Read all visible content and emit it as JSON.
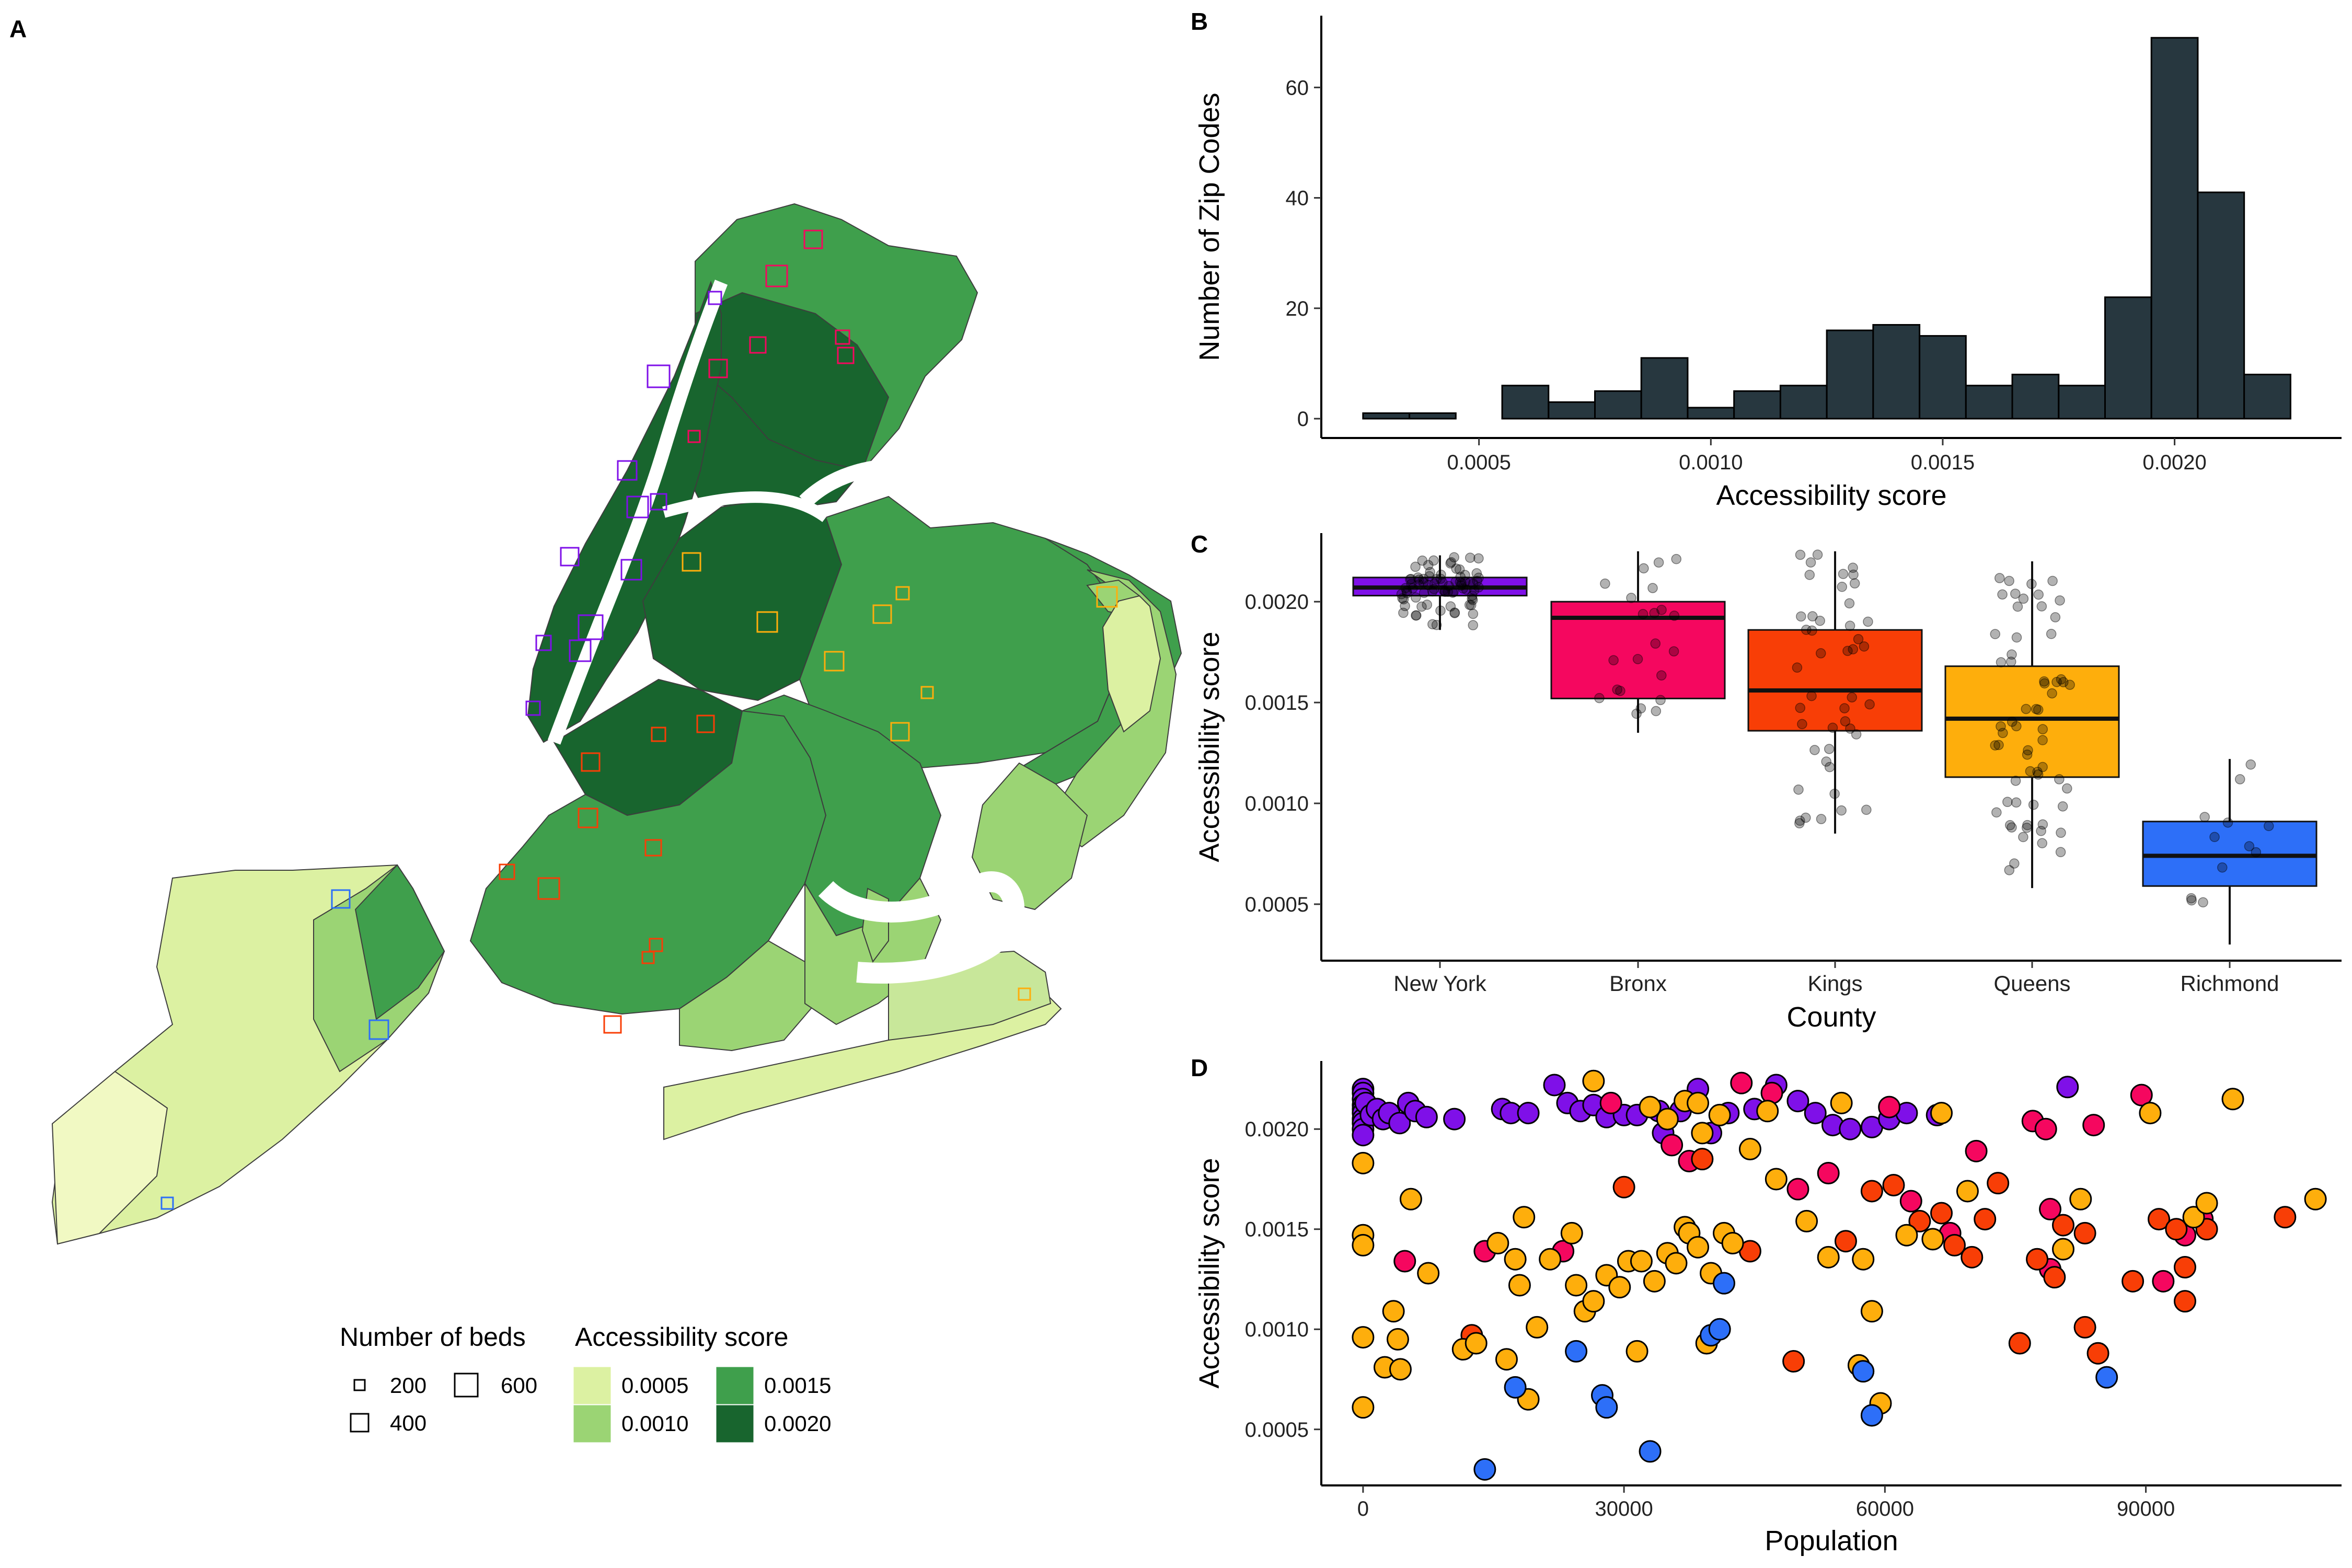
{
  "panel_labels": {
    "a": "A",
    "b": "B",
    "c": "C",
    "d": "D"
  },
  "colors": {
    "New York": "#7f10e8",
    "Bronx": "#f5075f",
    "Kings": "#f83e06",
    "Queens": "#feae0c",
    "Richmond": "#2d6ff8",
    "histogram_fill": "#27373f",
    "green_1": "#dcf1a2",
    "green_2": "#9bd474",
    "green_3": "#3f9f4c",
    "green_4": "#18652e"
  },
  "map_legend": {
    "beds_title": "Number of beds",
    "beds_entries": [
      {
        "label": "200",
        "value": 200
      },
      {
        "label": "400",
        "value": 400
      },
      {
        "label": "600",
        "value": 600
      }
    ],
    "score_title": "Accessibility score",
    "score_entries": [
      {
        "label": "0.0005",
        "color": "#dcf1a2"
      },
      {
        "label": "0.0010",
        "color": "#9bd474"
      },
      {
        "label": "0.0015",
        "color": "#3f9f4c"
      },
      {
        "label": "0.0020",
        "color": "#18652e"
      }
    ]
  },
  "chart_data": [
    {
      "panel": "B",
      "type": "bar",
      "xlabel": "Accessibility score",
      "ylabel": "Number of Zip Codes",
      "xlim": [
        0.00016,
        0.00236
      ],
      "ylim": [
        -3.5,
        73
      ],
      "x_ticks": [
        0.0005,
        0.001,
        0.0015,
        0.002
      ],
      "x_tick_labels": [
        "0.0005",
        "0.0010",
        "0.0015",
        "0.0020"
      ],
      "y_ticks": [
        0,
        20,
        40,
        60
      ],
      "y_tick_labels": [
        "0",
        "20",
        "40",
        "60"
      ],
      "bin_width": 0.0001,
      "bin_starts": [
        0.00025,
        0.00035,
        0.00045,
        0.00055,
        0.00065,
        0.00075,
        0.00085,
        0.00095,
        0.00105,
        0.00115,
        0.00125,
        0.00135,
        0.00145,
        0.00155,
        0.00165,
        0.00175,
        0.00185,
        0.00195,
        0.00205,
        0.00215,
        0.00225
      ],
      "values": [
        1,
        1,
        0,
        6,
        3,
        5,
        11,
        2,
        5,
        6,
        16,
        17,
        15,
        6,
        8,
        6,
        22,
        69,
        41,
        8,
        0
      ]
    },
    {
      "panel": "C",
      "type": "box",
      "xlabel": "County",
      "ylabel": "Accessibility score",
      "ylim": [
        0.00022,
        0.00234
      ],
      "y_ticks": [
        0.0005,
        0.001,
        0.0015,
        0.002
      ],
      "y_tick_labels": [
        "0.0005",
        "0.0010",
        "0.0015",
        "0.0020"
      ],
      "categories": [
        "New York",
        "Bronx",
        "Kings",
        "Queens",
        "Richmond"
      ],
      "boxes": [
        {
          "name": "New York",
          "whisker_low": 0.00186,
          "q1": 0.00203,
          "median": 0.00207,
          "q3": 0.00212,
          "whisker_high": 0.00223
        },
        {
          "name": "Bronx",
          "whisker_low": 0.00135,
          "q1": 0.00152,
          "median": 0.00192,
          "q3": 0.002,
          "whisker_high": 0.00225
        },
        {
          "name": "Kings",
          "whisker_low": 0.00085,
          "q1": 0.00136,
          "median": 0.00156,
          "q3": 0.00186,
          "whisker_high": 0.00225
        },
        {
          "name": "Queens",
          "whisker_low": 0.00058,
          "q1": 0.00113,
          "median": 0.00142,
          "q3": 0.00168,
          "whisker_high": 0.0022
        },
        {
          "name": "Richmond",
          "whisker_low": 0.0003,
          "q1": 0.00059,
          "median": 0.00074,
          "q3": 0.00091,
          "whisker_high": 0.00122
        }
      ]
    },
    {
      "panel": "D",
      "type": "scatter",
      "xlabel": "Population",
      "ylabel": "Accessibility score",
      "xlim": [
        -4800,
        112500
      ],
      "ylim": [
        0.00022,
        0.00234
      ],
      "x_ticks": [
        0,
        30000,
        60000,
        90000
      ],
      "x_tick_labels": [
        "0",
        "30000",
        "60000",
        "90000"
      ],
      "y_ticks": [
        0.0005,
        0.001,
        0.0015,
        0.002
      ],
      "y_tick_labels": [
        "0.0005",
        "0.0010",
        "0.0015",
        "0.0020"
      ],
      "series": [
        {
          "county": "New York",
          "points": [
            [
              0,
              0.0022
            ],
            [
              0,
              0.00218
            ],
            [
              0,
              0.00215
            ],
            [
              0,
              0.00212
            ],
            [
              0,
              0.0021
            ],
            [
              0,
              0.00208
            ],
            [
              0,
              0.00205
            ],
            [
              0,
              0.00203
            ],
            [
              0,
              0.002
            ],
            [
              0,
              0.00197
            ],
            [
              300,
              0.00213
            ],
            [
              900,
              0.00207
            ],
            [
              1600,
              0.0021
            ],
            [
              2300,
              0.00205
            ],
            [
              3000,
              0.00208
            ],
            [
              4200,
              0.00203
            ],
            [
              5200,
              0.00213
            ],
            [
              6000,
              0.00209
            ],
            [
              7300,
              0.00206
            ],
            [
              10500,
              0.00205
            ],
            [
              16000,
              0.0021
            ],
            [
              17000,
              0.00208
            ],
            [
              19000,
              0.00208
            ],
            [
              22000,
              0.00222
            ],
            [
              23500,
              0.00213
            ],
            [
              25000,
              0.00209
            ],
            [
              26500,
              0.00212
            ],
            [
              28000,
              0.00206
            ],
            [
              30000,
              0.00207
            ],
            [
              31500,
              0.00207
            ],
            [
              34000,
              0.00209
            ],
            [
              36500,
              0.00209
            ],
            [
              38500,
              0.0022
            ],
            [
              40000,
              0.00198
            ],
            [
              42000,
              0.00208
            ],
            [
              47500,
              0.00222
            ],
            [
              52000,
              0.00208
            ],
            [
              54000,
              0.00202
            ],
            [
              56000,
              0.002
            ],
            [
              58500,
              0.00201
            ],
            [
              60500,
              0.00205
            ],
            [
              62500,
              0.00208
            ],
            [
              66000,
              0.00207
            ],
            [
              81000,
              0.00221
            ],
            [
              34500,
              0.00198
            ],
            [
              45000,
              0.0021
            ],
            [
              50000,
              0.00214
            ]
          ]
        },
        {
          "county": "Bronx",
          "points": [
            [
              4800,
              0.00134
            ],
            [
              14000,
              0.00139
            ],
            [
              23000,
              0.00139
            ],
            [
              28500,
              0.00213
            ],
            [
              35500,
              0.00192
            ],
            [
              37500,
              0.00184
            ],
            [
              43500,
              0.00223
            ],
            [
              47000,
              0.00218
            ],
            [
              50000,
              0.0017
            ],
            [
              53500,
              0.00178
            ],
            [
              60500,
              0.00211
            ],
            [
              63000,
              0.00164
            ],
            [
              67500,
              0.00148
            ],
            [
              70500,
              0.00189
            ],
            [
              77000,
              0.00204
            ],
            [
              78500,
              0.002
            ],
            [
              79000,
              0.0016
            ],
            [
              84000,
              0.00202
            ],
            [
              89500,
              0.00217
            ],
            [
              94500,
              0.00147
            ],
            [
              96500,
              0.00155
            ],
            [
              79000,
              0.0013
            ],
            [
              92000,
              0.00124
            ]
          ]
        },
        {
          "county": "Kings",
          "points": [
            [
              12500,
              0.00097
            ],
            [
              30000,
              0.00171
            ],
            [
              39000,
              0.00185
            ],
            [
              44500,
              0.00139
            ],
            [
              49500,
              0.00084
            ],
            [
              55500,
              0.00144
            ],
            [
              58500,
              0.00169
            ],
            [
              61000,
              0.00172
            ],
            [
              64000,
              0.00154
            ],
            [
              66500,
              0.00158
            ],
            [
              68000,
              0.00142
            ],
            [
              71500,
              0.00155
            ],
            [
              73000,
              0.00173
            ],
            [
              75500,
              0.00093
            ],
            [
              77500,
              0.00135
            ],
            [
              79500,
              0.00126
            ],
            [
              80500,
              0.00152
            ],
            [
              83000,
              0.00148
            ],
            [
              84500,
              0.00088
            ],
            [
              88500,
              0.00124
            ],
            [
              91500,
              0.00155
            ],
            [
              93500,
              0.0015
            ],
            [
              94500,
              0.00131
            ],
            [
              94500,
              0.00114
            ],
            [
              97000,
              0.0015
            ],
            [
              106000,
              0.00156
            ],
            [
              83000,
              0.00101
            ],
            [
              70000,
              0.00136
            ]
          ]
        },
        {
          "county": "Queens",
          "points": [
            [
              0,
              0.00183
            ],
            [
              0,
              0.00147
            ],
            [
              0,
              0.00142
            ],
            [
              0,
              0.00096
            ],
            [
              0,
              0.00061
            ],
            [
              2500,
              0.00081
            ],
            [
              3500,
              0.00109
            ],
            [
              4000,
              0.00095
            ],
            [
              4300,
              0.0008
            ],
            [
              5500,
              0.00165
            ],
            [
              7500,
              0.00128
            ],
            [
              11500,
              0.0009
            ],
            [
              13000,
              0.00093
            ],
            [
              15500,
              0.00143
            ],
            [
              16500,
              0.00085
            ],
            [
              17500,
              0.00135
            ],
            [
              18000,
              0.00122
            ],
            [
              18500,
              0.00156
            ],
            [
              19000,
              0.00065
            ],
            [
              20000,
              0.00101
            ],
            [
              21500,
              0.00135
            ],
            [
              24000,
              0.00148
            ],
            [
              24500,
              0.00122
            ],
            [
              25500,
              0.00109
            ],
            [
              26500,
              0.00114
            ],
            [
              28000,
              0.00127
            ],
            [
              29500,
              0.00121
            ],
            [
              30500,
              0.00134
            ],
            [
              31500,
              0.00089
            ],
            [
              32000,
              0.00134
            ],
            [
              33500,
              0.00124
            ],
            [
              35000,
              0.00138
            ],
            [
              36000,
              0.00133
            ],
            [
              37000,
              0.00151
            ],
            [
              37500,
              0.00148
            ],
            [
              38500,
              0.00141
            ],
            [
              39500,
              0.00093
            ],
            [
              40000,
              0.00128
            ],
            [
              41500,
              0.00148
            ],
            [
              42500,
              0.00143
            ],
            [
              44500,
              0.0019
            ],
            [
              46500,
              0.00209
            ],
            [
              47500,
              0.00175
            ],
            [
              51000,
              0.00154
            ],
            [
              53500,
              0.00136
            ],
            [
              55000,
              0.00213
            ],
            [
              57000,
              0.00082
            ],
            [
              57500,
              0.00135
            ],
            [
              58500,
              0.00109
            ],
            [
              59500,
              0.00063
            ],
            [
              62500,
              0.00147
            ],
            [
              65500,
              0.00145
            ],
            [
              66500,
              0.00208
            ],
            [
              69500,
              0.00169
            ],
            [
              80500,
              0.0014
            ],
            [
              82500,
              0.00165
            ],
            [
              90500,
              0.00208
            ],
            [
              95500,
              0.00156
            ],
            [
              97000,
              0.00163
            ],
            [
              100000,
              0.00215
            ],
            [
              109500,
              0.00165
            ],
            [
              26500,
              0.00224
            ],
            [
              33000,
              0.00211
            ],
            [
              35000,
              0.00205
            ],
            [
              37000,
              0.00214
            ],
            [
              38500,
              0.00213
            ],
            [
              39000,
              0.00198
            ],
            [
              41000,
              0.00207
            ]
          ]
        },
        {
          "county": "Richmond",
          "points": [
            [
              14000,
              0.0003
            ],
            [
              17500,
              0.00071
            ],
            [
              24500,
              0.00089
            ],
            [
              27500,
              0.00067
            ],
            [
              28000,
              0.00061
            ],
            [
              33000,
              0.00039
            ],
            [
              40000,
              0.00097
            ],
            [
              41000,
              0.001
            ],
            [
              41500,
              0.00123
            ],
            [
              57500,
              0.00079
            ],
            [
              58500,
              0.00057
            ],
            [
              85500,
              0.00076
            ]
          ]
        }
      ]
    }
  ]
}
